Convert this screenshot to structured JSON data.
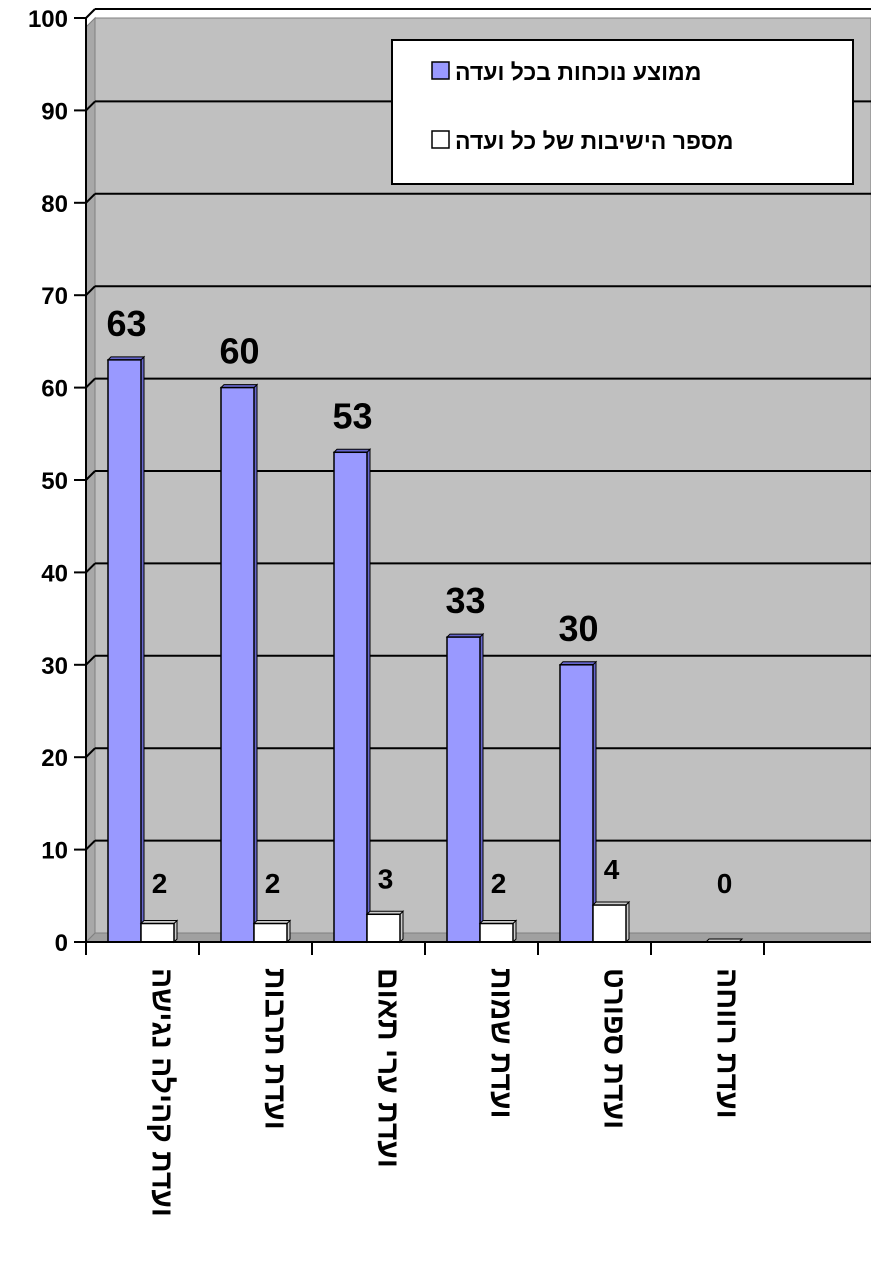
{
  "chart_data": {
    "type": "bar",
    "categories": [
      "ועדת קהילה נגישה",
      "ועדת תרבות",
      "ועדת ערי תאום",
      "ועדת שמות",
      "ועדת ספורט",
      "ועדת רווחה"
    ],
    "series": [
      {
        "name": "ממוצע נוכחות בכל ועדה",
        "values": [
          63,
          60,
          53,
          33,
          30,
          0
        ],
        "color": "#9999ff"
      },
      {
        "name": "מספר הישיבות של כל ועדה",
        "values": [
          2,
          2,
          3,
          2,
          4,
          0
        ],
        "color": "#ffffff"
      }
    ],
    "ylim": [
      0,
      100
    ],
    "yticks": [
      0,
      10,
      20,
      30,
      40,
      50,
      60,
      70,
      80,
      90,
      100
    ],
    "grid": true,
    "legend_position": "top-right",
    "plot_background": "#c0c0c0",
    "data_labels": {
      "series_1": [
        "63",
        "60",
        "53",
        "33",
        "30",
        ""
      ],
      "series_2": [
        "2",
        "2",
        "3",
        "2",
        "4",
        "0"
      ]
    }
  }
}
